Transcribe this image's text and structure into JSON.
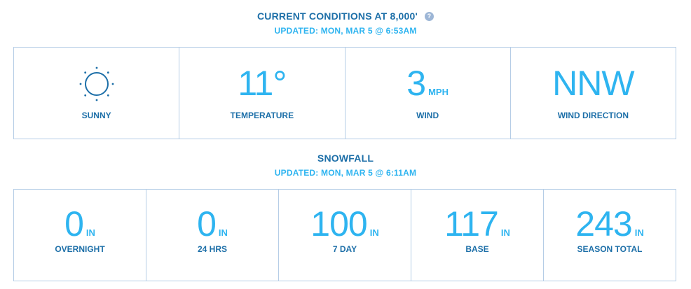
{
  "conditions": {
    "title": "CURRENT CONDITIONS AT 8,000'",
    "help_icon": "?",
    "updated": "UPDATED: MON, MAR 5 @ 6:53AM",
    "weather": {
      "icon": "sun-icon",
      "label": "SUNNY"
    },
    "temperature": {
      "value": "11°",
      "label": "TEMPERATURE"
    },
    "wind": {
      "value": "3",
      "unit": "MPH",
      "label": "WIND"
    },
    "wind_direction": {
      "value": "NNW",
      "label": "WIND DIRECTION"
    }
  },
  "snowfall": {
    "title": "SNOWFALL",
    "updated": "UPDATED: MON, MAR 5 @ 6:11AM",
    "items": [
      {
        "value": "0",
        "unit": "IN",
        "label": "OVERNIGHT"
      },
      {
        "value": "0",
        "unit": "IN",
        "label": "24 HRS"
      },
      {
        "value": "100",
        "unit": "IN",
        "label": "7 DAY"
      },
      {
        "value": "117",
        "unit": "IN",
        "label": "BASE"
      },
      {
        "value": "243",
        "unit": "IN",
        "label": "SEASON TOTAL"
      }
    ]
  },
  "colors": {
    "heading": "#1d6fa8",
    "accent": "#2eb4f0",
    "border": "#b5cde6",
    "help_icon_bg": "#9db6d6"
  }
}
